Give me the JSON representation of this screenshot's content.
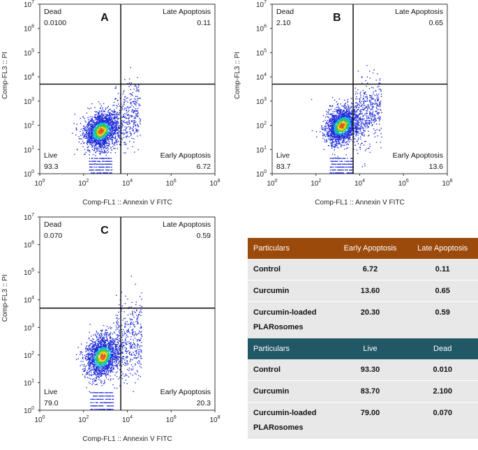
{
  "chart_data": [
    {
      "type": "scatter",
      "panel_letter": "A",
      "xlabel": "Comp-FL1 :: Annexin V FITC",
      "ylabel": "Comp-FL3 :: PI",
      "x_scale": "log",
      "y_scale": "log",
      "xlim": [
        1,
        100000000
      ],
      "ylim": [
        1,
        10000000
      ],
      "x_ticks": [
        "10",
        "10",
        "10",
        "10",
        "10"
      ],
      "x_tick_exponents": [
        "0",
        "2",
        "4",
        "6",
        "8"
      ],
      "y_ticks": [
        "10",
        "10",
        "10",
        "10",
        "10",
        "10",
        "10",
        "10"
      ],
      "y_tick_exponents": [
        "0",
        "1",
        "2",
        "3",
        "4",
        "5",
        "6",
        "7"
      ],
      "gate_x": 5000,
      "gate_y": 5000,
      "population_center": {
        "x": 600,
        "y": 60
      },
      "quadrants": {
        "top_left": {
          "label": "Dead",
          "value": "0.0100"
        },
        "top_right": {
          "label": "Late Apoptosis",
          "value": "0.11"
        },
        "bottom_left": {
          "label": "Live",
          "value": "93.3"
        },
        "bottom_right": {
          "label": "Early Apoptosis",
          "value": "6.72"
        }
      }
    },
    {
      "type": "scatter",
      "panel_letter": "B",
      "xlabel": "Comp-FL1 :: Annexin V FITC",
      "ylabel": "Comp-FL3 :: PI",
      "x_scale": "log",
      "y_scale": "log",
      "xlim": [
        1,
        100000000
      ],
      "ylim": [
        1,
        10000000
      ],
      "x_ticks": [
        "10",
        "10",
        "10",
        "10",
        "10"
      ],
      "x_tick_exponents": [
        "0",
        "2",
        "4",
        "6",
        "8"
      ],
      "y_ticks": [
        "10",
        "10",
        "10",
        "10",
        "10",
        "10",
        "10",
        "10"
      ],
      "y_tick_exponents": [
        "0",
        "1",
        "2",
        "3",
        "4",
        "5",
        "6",
        "7"
      ],
      "gate_x": 5000,
      "gate_y": 5000,
      "population_center": {
        "x": 1500,
        "y": 100
      },
      "quadrants": {
        "top_left": {
          "label": "Dead",
          "value": "2.10"
        },
        "top_right": {
          "label": "Late Apoptosis",
          "value": "0.65"
        },
        "bottom_left": {
          "label": "Live",
          "value": "83.7"
        },
        "bottom_right": {
          "label": "Early Apoptosis",
          "value": "13.6"
        }
      }
    },
    {
      "type": "scatter",
      "panel_letter": "C",
      "xlabel": "Comp-FL1 :: Annexin V FITC",
      "ylabel": "Comp-FL3 :: PI",
      "x_scale": "log",
      "y_scale": "log",
      "xlim": [
        1,
        100000000
      ],
      "ylim": [
        1,
        10000000
      ],
      "x_ticks": [
        "10",
        "10",
        "10",
        "10",
        "10"
      ],
      "x_tick_exponents": [
        "0",
        "2",
        "4",
        "6",
        "8"
      ],
      "y_ticks": [
        "10",
        "10",
        "10",
        "10",
        "10",
        "10",
        "10",
        "10"
      ],
      "y_tick_exponents": [
        "0",
        "1",
        "2",
        "3",
        "4",
        "5",
        "6",
        "7"
      ],
      "gate_x": 5000,
      "gate_y": 5000,
      "population_center": {
        "x": 700,
        "y": 90
      },
      "quadrants": {
        "top_left": {
          "label": "Dead",
          "value": "0.070"
        },
        "top_right": {
          "label": "Late Apoptosis",
          "value": "0.59"
        },
        "bottom_left": {
          "label": "Live",
          "value": "79.0"
        },
        "bottom_right": {
          "label": "Early Apoptosis",
          "value": "20.3"
        }
      }
    },
    {
      "type": "table",
      "apoptosis_table": {
        "header_color": "#9c4a0c",
        "headers": [
          "Particulars",
          "Early Apoptosis",
          "Late Apoptosis"
        ],
        "rows": [
          [
            "Control",
            "6.72",
            "0.11"
          ],
          [
            "Curcumin",
            "13.60",
            "0.65"
          ],
          [
            "Curcumin-loaded",
            "20.30",
            "0.59"
          ]
        ],
        "row_continuation": "PLARosomes"
      },
      "viability_table": {
        "header_color": "#225866",
        "headers": [
          "Particulars",
          "Live",
          "Dead"
        ],
        "rows": [
          [
            "Control",
            "93.30",
            "0.010"
          ],
          [
            "Curcumin",
            "83.70",
            "2.100"
          ],
          [
            "Curcumin-loaded",
            "79.00",
            "0.070"
          ]
        ],
        "row_continuation": "PLARosomes"
      }
    }
  ]
}
